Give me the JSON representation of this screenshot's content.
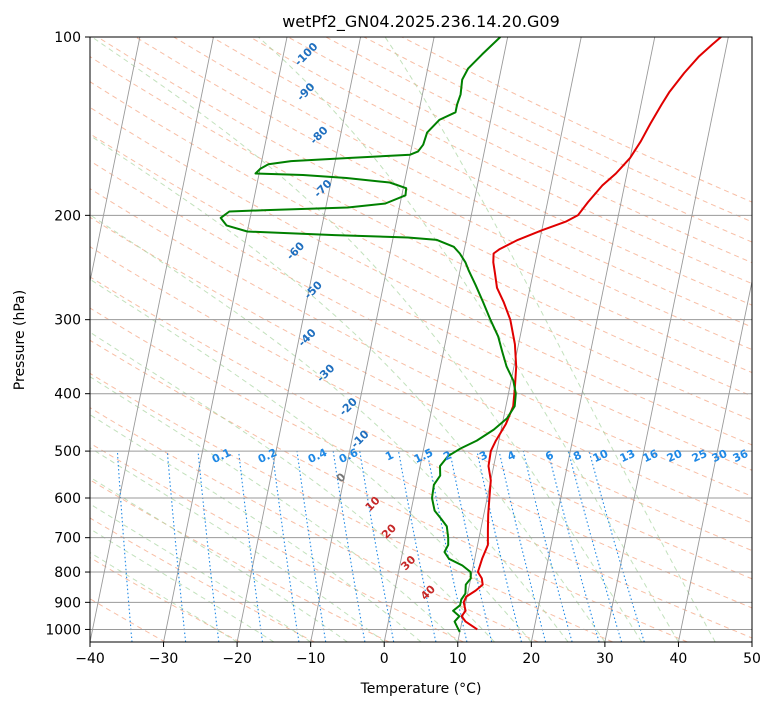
{
  "chart_data": {
    "type": "line",
    "title": "wetPf2_GN04.2025.236.14.20.G09",
    "xlabel": "Temperature (°C)",
    "ylabel": "Pressure (hPa)",
    "xlim": [
      -40,
      50
    ],
    "ylim": [
      1050,
      100
    ],
    "y_scale": "log",
    "grid": true,
    "x_ticks": [
      -40,
      -30,
      -20,
      -10,
      0,
      10,
      20,
      30,
      40,
      50
    ],
    "y_ticks": [
      1000,
      900,
      800,
      700,
      600,
      500,
      400,
      300,
      200,
      100
    ],
    "series": [
      {
        "color": "#e00000",
        "points": [
          [
            12.3,
            1000
          ],
          [
            10.5,
            970
          ],
          [
            9.8,
            950
          ],
          [
            10.2,
            930
          ],
          [
            9.7,
            900
          ],
          [
            9.9,
            880
          ],
          [
            11,
            860
          ],
          [
            11.8,
            840
          ],
          [
            11.5,
            820
          ],
          [
            10.8,
            800
          ],
          [
            11,
            760
          ],
          [
            11.4,
            720
          ],
          [
            11,
            680
          ],
          [
            10.6,
            640
          ],
          [
            10.3,
            600
          ],
          [
            10,
            560
          ],
          [
            9.3,
            530
          ],
          [
            9.2,
            500
          ],
          [
            9.6,
            480
          ],
          [
            10.5,
            450
          ],
          [
            11,
            420
          ],
          [
            10.7,
            390
          ],
          [
            10.3,
            360
          ],
          [
            9.5,
            330
          ],
          [
            8.2,
            300
          ],
          [
            6.8,
            280
          ],
          [
            5.5,
            265
          ],
          [
            4.8,
            250
          ],
          [
            4.3,
            240
          ],
          [
            4.1,
            232
          ],
          [
            4.8,
            228
          ],
          [
            7,
            220
          ],
          [
            10,
            212
          ],
          [
            13,
            205
          ],
          [
            14.5,
            200
          ],
          [
            15.5,
            190
          ],
          [
            17,
            178
          ],
          [
            18.5,
            170
          ],
          [
            20,
            160
          ],
          [
            21,
            150
          ],
          [
            21.8,
            140
          ],
          [
            22.8,
            130
          ],
          [
            23.5,
            124
          ],
          [
            25,
            115
          ],
          [
            26.5,
            108
          ],
          [
            28,
            103
          ],
          [
            29,
            100
          ]
        ]
      },
      {
        "color": "#008000",
        "points": [
          [
            10,
            1010
          ],
          [
            9.5,
            990
          ],
          [
            9,
            970
          ],
          [
            9.5,
            950
          ],
          [
            8.5,
            930
          ],
          [
            9.3,
            910
          ],
          [
            9.3,
            890
          ],
          [
            9.7,
            870
          ],
          [
            9.5,
            840
          ],
          [
            10,
            820
          ],
          [
            9.8,
            800
          ],
          [
            8.5,
            780
          ],
          [
            6.5,
            760
          ],
          [
            5.7,
            740
          ],
          [
            6,
            720
          ],
          [
            5.8,
            700
          ],
          [
            5.3,
            670
          ],
          [
            4.3,
            650
          ],
          [
            3.2,
            630
          ],
          [
            2.5,
            600
          ],
          [
            2.4,
            570
          ],
          [
            3,
            550
          ],
          [
            2.7,
            530
          ],
          [
            3.5,
            510
          ],
          [
            5,
            495
          ],
          [
            7,
            480
          ],
          [
            9,
            460
          ],
          [
            10.5,
            440
          ],
          [
            11.2,
            420
          ],
          [
            11,
            400
          ],
          [
            10.3,
            380
          ],
          [
            9,
            360
          ],
          [
            8,
            340
          ],
          [
            7,
            320
          ],
          [
            5.5,
            300
          ],
          [
            4,
            280
          ],
          [
            2.5,
            262
          ],
          [
            1.2,
            248
          ],
          [
            0.5,
            240
          ],
          [
            -0.5,
            232
          ],
          [
            -1.5,
            226
          ],
          [
            -4,
            220
          ],
          [
            -8,
            218
          ],
          [
            -18,
            216
          ],
          [
            -30,
            213
          ],
          [
            -33,
            208
          ],
          [
            -34,
            202
          ],
          [
            -33,
            197
          ],
          [
            -28,
            196
          ],
          [
            -17,
            194
          ],
          [
            -12,
            191
          ],
          [
            -9.5,
            185
          ],
          [
            -9.6,
            180
          ],
          [
            -12,
            176
          ],
          [
            -18,
            173
          ],
          [
            -24,
            171
          ],
          [
            -30.5,
            170
          ],
          [
            -30,
            167
          ],
          [
            -29,
            164
          ],
          [
            -26,
            162
          ],
          [
            -18,
            160
          ],
          [
            -10,
            158
          ],
          [
            -9,
            156
          ],
          [
            -8.5,
            152
          ],
          [
            -8.3,
            145
          ],
          [
            -7,
            138
          ],
          [
            -5,
            134
          ],
          [
            -5,
            130
          ],
          [
            -4.8,
            125
          ],
          [
            -5,
            118
          ],
          [
            -4.5,
            113
          ],
          [
            -3,
            107
          ],
          [
            -1,
            100
          ]
        ]
      }
    ],
    "annotations": {
      "dry_adiabats": [
        "-100",
        "-90",
        "-80",
        "-70",
        "-60",
        "-50",
        "-40",
        "-30",
        "-20",
        "-10",
        "0",
        "10",
        "20",
        "30",
        "40"
      ],
      "mixing_ratios": [
        "0.1",
        "0.2",
        "0.4",
        "0.6",
        "1",
        "1.5",
        "2",
        "3",
        "4",
        "6",
        "8",
        "10",
        "13",
        "16",
        "20",
        "25",
        "30",
        "36"
      ]
    }
  }
}
